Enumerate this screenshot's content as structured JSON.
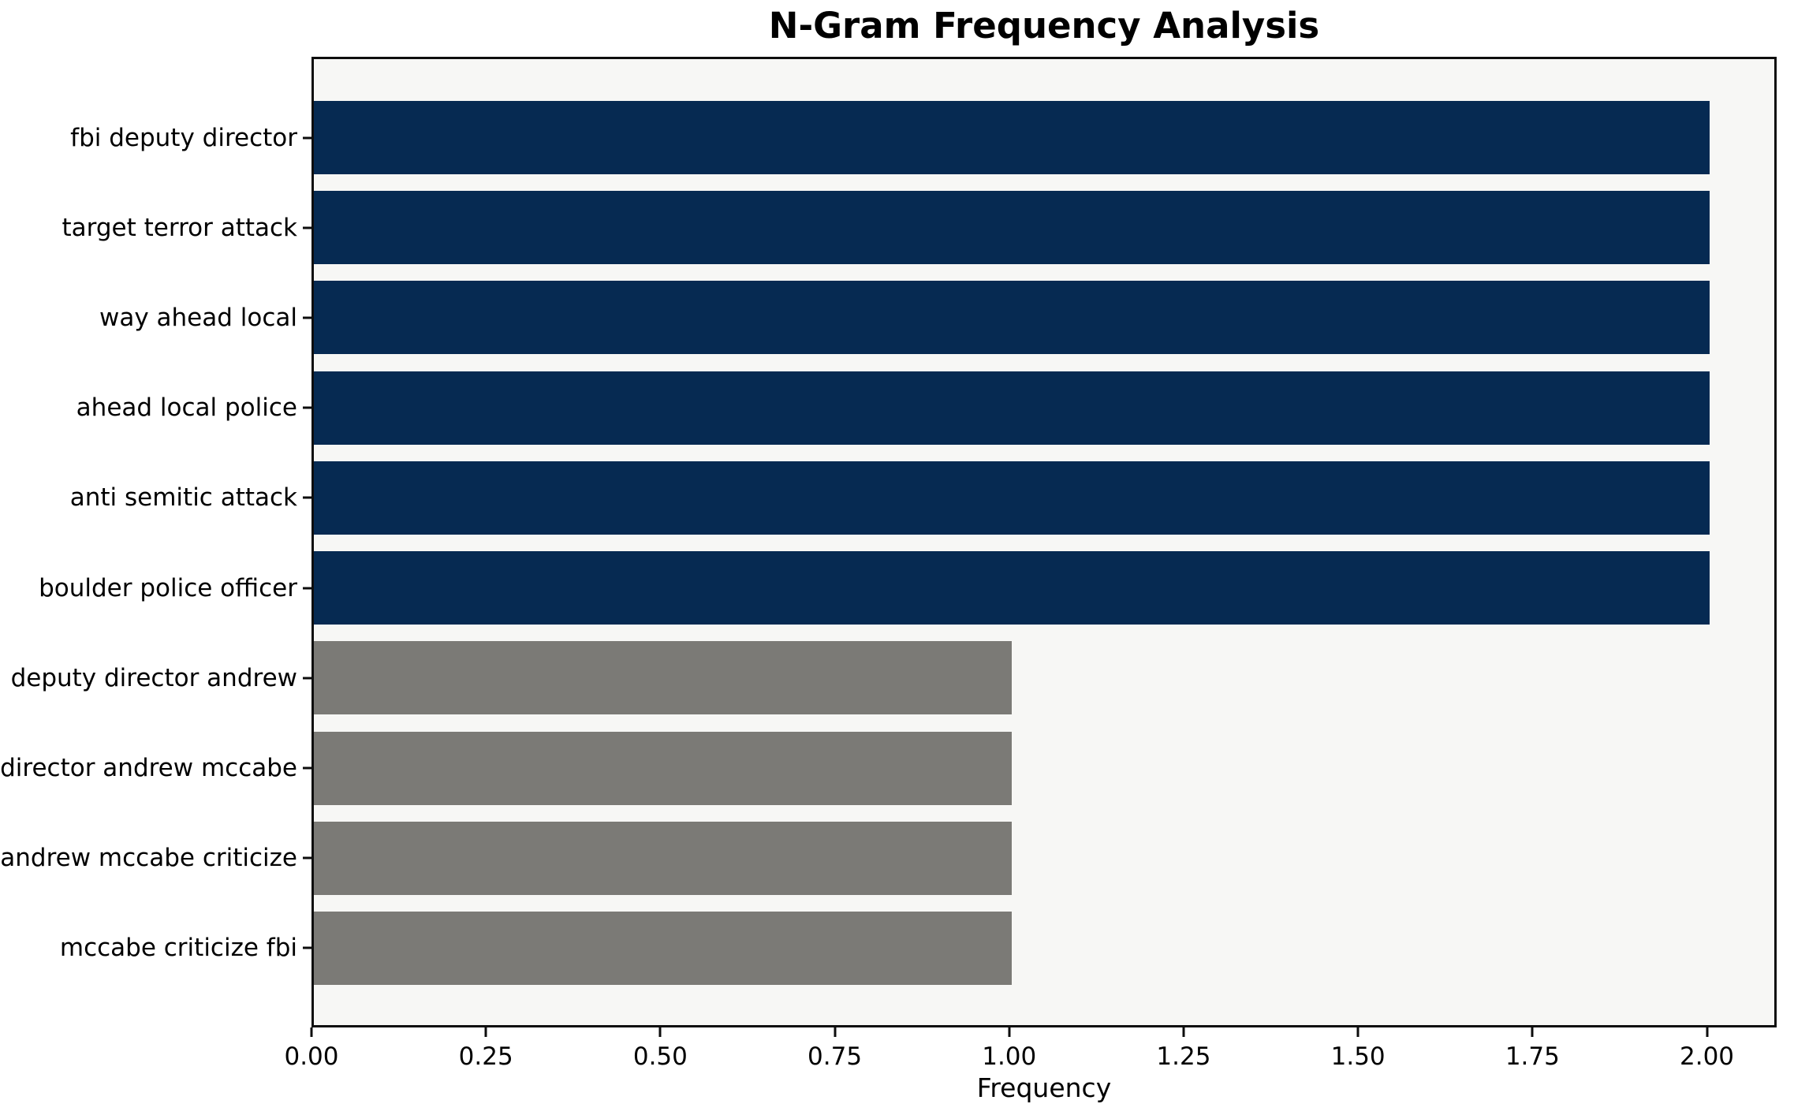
{
  "chart_data": {
    "type": "bar",
    "orientation": "horizontal",
    "title": "N-Gram Frequency Analysis",
    "xlabel": "Frequency",
    "ylabel": "",
    "categories": [
      "fbi deputy director",
      "target terror attack",
      "way ahead local",
      "ahead local police",
      "anti semitic attack",
      "boulder police officer",
      "deputy director andrew",
      "director andrew mccabe",
      "andrew mccabe criticize",
      "mccabe criticize fbi"
    ],
    "values": [
      2,
      2,
      2,
      2,
      2,
      2,
      1,
      1,
      1,
      1
    ],
    "bar_colors": [
      "#062a52",
      "#062a52",
      "#062a52",
      "#062a52",
      "#062a52",
      "#062a52",
      "#7b7a76",
      "#7b7a76",
      "#7b7a76",
      "#7b7a76"
    ],
    "xlim": [
      0,
      2.1
    ],
    "xticks": [
      {
        "value": 0.0,
        "label": "0.00"
      },
      {
        "value": 0.25,
        "label": "0.25"
      },
      {
        "value": 0.5,
        "label": "0.50"
      },
      {
        "value": 0.75,
        "label": "0.75"
      },
      {
        "value": 1.0,
        "label": "1.00"
      },
      {
        "value": 1.25,
        "label": "1.25"
      },
      {
        "value": 1.5,
        "label": "1.50"
      },
      {
        "value": 1.75,
        "label": "1.75"
      },
      {
        "value": 2.0,
        "label": "2.00"
      }
    ],
    "grid": false,
    "legend": "none",
    "colors": {
      "navy": "#062a52",
      "gray": "#7b7a76",
      "plot_background": "#f7f7f5",
      "figure_background": "#ffffff",
      "spine": "#0d0d0d"
    }
  }
}
